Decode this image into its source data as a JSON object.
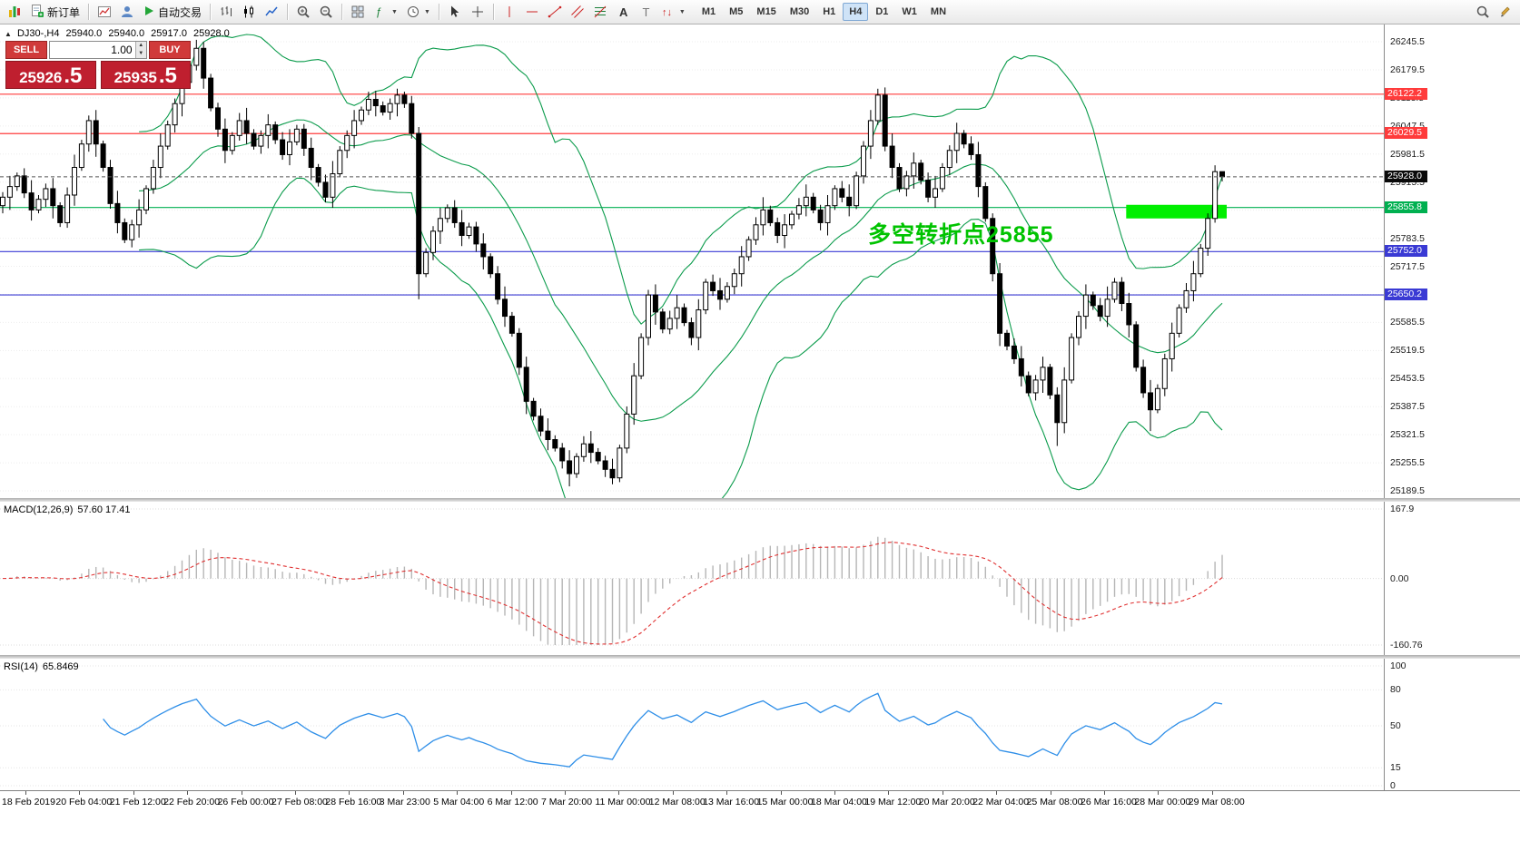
{
  "toolbar": {
    "new_order_label": "新订单",
    "autotrade_label": "自动交易",
    "timeframes": [
      "M1",
      "M5",
      "M15",
      "M30",
      "H1",
      "H4",
      "D1",
      "W1",
      "MN"
    ],
    "active_timeframe": "H4"
  },
  "trade_panel": {
    "sell_label": "SELL",
    "buy_label": "BUY",
    "lot_value": "1.00",
    "sell_price": "25926",
    "sell_price_fraction": ".5",
    "buy_price": "25935",
    "buy_price_fraction": ".5"
  },
  "chart_header": {
    "toggle_glyph": "▲",
    "symbol_period": "DJ30-,H4",
    "open": "25940.0",
    "high": "25940.0",
    "low": "25917.0",
    "close": "25928.0"
  },
  "annotation": {
    "text": "多空转折点25855",
    "color": "#00c300"
  },
  "chart_data": {
    "type": "candlestick",
    "title": "DJ30-,H4",
    "y_ticks": [
      26245.5,
      26179.5,
      26113.5,
      26047.5,
      25981.5,
      25915.5,
      25849.5,
      25783.5,
      25717.5,
      25651.5,
      25585.5,
      25519.5,
      25453.5,
      25387.5,
      25321.5,
      25255.5,
      25189.5
    ],
    "x_labels": [
      "18 Feb 2019",
      "20 Feb 04:00",
      "21 Feb 12:00",
      "22 Feb 20:00",
      "26 Feb 00:00",
      "27 Feb 08:00",
      "28 Feb 16:00",
      "3 Mar 23:00",
      "5 Mar 04:00",
      "6 Mar 12:00",
      "7 Mar 20:00",
      "11 Mar 00:00",
      "12 Mar 08:00",
      "13 Mar 16:00",
      "15 Mar 00:00",
      "18 Mar 04:00",
      "19 Mar 12:00",
      "20 Mar 20:00",
      "22 Mar 04:00",
      "25 Mar 08:00",
      "26 Mar 16:00",
      "28 Mar 00:00",
      "29 Mar 08:00"
    ],
    "levels": [
      {
        "price": 26122.2,
        "label": "26122.2",
        "color": "#ff3b3b"
      },
      {
        "price": 26029.5,
        "label": "26029.5",
        "color": "#ff3b3b"
      },
      {
        "price": 25855.8,
        "label": "25855.8",
        "color": "#00b050"
      },
      {
        "price": 25752.0,
        "label": "25752.0",
        "color": "#3a3ad4"
      },
      {
        "price": 25650.2,
        "label": "25650.2",
        "color": "#3a3ad4"
      }
    ],
    "current_price": {
      "price": 25928.0,
      "label": "25928.0",
      "color": "#0a0a0a"
    },
    "highlight_rect": {
      "from_bar": 157,
      "to_bar": 170,
      "price_top": 25862,
      "price_bottom": 25830,
      "color": "#00ef00"
    },
    "bollinger": {
      "period": 20,
      "deviation": 2,
      "color": "#0a9b4b"
    },
    "macd": {
      "label": "MACD(12,26,9)",
      "values": "57.60 17.41",
      "fast": 12,
      "slow": 26,
      "signal": 9,
      "scale": [
        {
          "label": "167.9",
          "value": 167.9
        },
        {
          "label": "0.00",
          "value": 0
        },
        {
          "label": "-160.76",
          "value": -160.76
        }
      ],
      "histogram_color": "#b6b6b6",
      "signal_color": "#e03131"
    },
    "rsi": {
      "label": "RSI(14)",
      "value": "65.8469",
      "period": 14,
      "scale": [
        {
          "label": "100",
          "value": 100
        },
        {
          "label": "80",
          "value": 80
        },
        {
          "label": "50",
          "value": 50
        },
        {
          "label": "15",
          "value": 15
        },
        {
          "label": "0",
          "value": 0
        }
      ],
      "line_color": "#2f8fe8"
    },
    "ohlc": [
      [
        25860,
        25892,
        25842,
        25880
      ],
      [
        25880,
        25930,
        25850,
        25905
      ],
      [
        25905,
        25938,
        25895,
        25930
      ],
      [
        25930,
        25948,
        25878,
        25890
      ],
      [
        25890,
        25920,
        25825,
        25850
      ],
      [
        25850,
        25885,
        25842,
        25875
      ],
      [
        25875,
        25912,
        25857,
        25900
      ],
      [
        25900,
        25925,
        25830,
        25860
      ],
      [
        25860,
        25868,
        25810,
        25820
      ],
      [
        25820,
        25903,
        25808,
        25885
      ],
      [
        25885,
        25980,
        25860,
        25950
      ],
      [
        25950,
        26015,
        25942,
        26005
      ],
      [
        26005,
        26072,
        25987,
        26060
      ],
      [
        26060,
        26085,
        25975,
        26005
      ],
      [
        26005,
        26013,
        25940,
        25950
      ],
      [
        25950,
        25968,
        25853,
        25865
      ],
      [
        25865,
        25895,
        25795,
        25820
      ],
      [
        25820,
        25830,
        25772,
        25780
      ],
      [
        25780,
        25827,
        25762,
        25815
      ],
      [
        25815,
        25875,
        25785,
        25850
      ],
      [
        25850,
        25908,
        25840,
        25900
      ],
      [
        25900,
        25968,
        25888,
        25950
      ],
      [
        25950,
        26030,
        25925,
        26000
      ],
      [
        26000,
        26060,
        25992,
        26050
      ],
      [
        26050,
        26112,
        26032,
        26100
      ],
      [
        26100,
        26175,
        26070,
        26150
      ],
      [
        26150,
        26198,
        26140,
        26190
      ],
      [
        26190,
        26250,
        26178,
        26230
      ],
      [
        26230,
        26245,
        26135,
        26160
      ],
      [
        26160,
        26170,
        26082,
        26090
      ],
      [
        26090,
        26102,
        26022,
        26040
      ],
      [
        26040,
        26065,
        25960,
        25990
      ],
      [
        25990,
        26033,
        25980,
        26025
      ],
      [
        26025,
        26078,
        26013,
        26060
      ],
      [
        26060,
        26090,
        26005,
        26030
      ],
      [
        26030,
        26040,
        25992,
        26000
      ],
      [
        26000,
        26037,
        25982,
        26025
      ],
      [
        26025,
        26075,
        25995,
        26050
      ],
      [
        26050,
        26058,
        26005,
        26015
      ],
      [
        26015,
        26033,
        25968,
        25980
      ],
      [
        25980,
        26040,
        25955,
        26010
      ],
      [
        26010,
        26050,
        26002,
        26040
      ],
      [
        26040,
        26052,
        25977,
        25995
      ],
      [
        25995,
        26020,
        25920,
        25950
      ],
      [
        25950,
        25958,
        25905,
        25915
      ],
      [
        25915,
        25933,
        25868,
        25880
      ],
      [
        25880,
        25965,
        25855,
        25935
      ],
      [
        25935,
        26000,
        25927,
        25990
      ],
      [
        25990,
        26037,
        25972,
        26025
      ],
      [
        26025,
        26085,
        25995,
        26060
      ],
      [
        26060,
        26093,
        26050,
        26085
      ],
      [
        26085,
        26128,
        26073,
        26110
      ],
      [
        26110,
        26130,
        26070,
        26095
      ],
      [
        26095,
        26105,
        26072,
        26080
      ],
      [
        26080,
        26112,
        26062,
        26100
      ],
      [
        26100,
        26135,
        26070,
        26120
      ],
      [
        26120,
        26128,
        26090,
        26100
      ],
      [
        26100,
        26118,
        26018,
        26030
      ],
      [
        26030,
        26045,
        25640,
        25700
      ],
      [
        25700,
        25760,
        25692,
        25750
      ],
      [
        25750,
        25812,
        25732,
        25800
      ],
      [
        25800,
        25855,
        25770,
        25830
      ],
      [
        25830,
        25863,
        25820,
        25855
      ],
      [
        25855,
        25873,
        25808,
        25820
      ],
      [
        25820,
        25850,
        25765,
        25790
      ],
      [
        25790,
        25820,
        25782,
        25810
      ],
      [
        25810,
        25822,
        25752,
        25770
      ],
      [
        25770,
        25795,
        25710,
        25740
      ],
      [
        25740,
        25748,
        25690,
        25700
      ],
      [
        25700,
        25718,
        25628,
        25640
      ],
      [
        25640,
        25670,
        25575,
        25600
      ],
      [
        25600,
        25610,
        25552,
        25560
      ],
      [
        25560,
        25572,
        25462,
        25480
      ],
      [
        25480,
        25505,
        25370,
        25400
      ],
      [
        25400,
        25408,
        25355,
        25365
      ],
      [
        25365,
        25383,
        25318,
        25330
      ],
      [
        25330,
        25360,
        25285,
        25310
      ],
      [
        25310,
        25320,
        25282,
        25290
      ],
      [
        25290,
        25302,
        25242,
        25260
      ],
      [
        25260,
        25285,
        25200,
        25230
      ],
      [
        25230,
        25278,
        25220,
        25270
      ],
      [
        25270,
        25318,
        25258,
        25300
      ],
      [
        25300,
        25330,
        25255,
        25280
      ],
      [
        25280,
        25290,
        25252,
        25260
      ],
      [
        25260,
        25272,
        25222,
        25240
      ],
      [
        25240,
        25265,
        25205,
        25220
      ],
      [
        25220,
        25298,
        25210,
        25290
      ],
      [
        25290,
        25388,
        25278,
        25370
      ],
      [
        25370,
        25490,
        25345,
        25460
      ],
      [
        25460,
        25560,
        25452,
        25550
      ],
      [
        25550,
        25662,
        25532,
        25650
      ],
      [
        25650,
        25675,
        25580,
        25610
      ],
      [
        25610,
        25618,
        25560,
        25570
      ],
      [
        25570,
        25613,
        25558,
        25595
      ],
      [
        25595,
        25650,
        25570,
        25620
      ],
      [
        25620,
        25630,
        25577,
        25585
      ],
      [
        25585,
        25597,
        25532,
        25550
      ],
      [
        25550,
        25640,
        25520,
        25615
      ],
      [
        25615,
        25688,
        25605,
        25680
      ],
      [
        25680,
        25698,
        25648,
        25660
      ],
      [
        25660,
        25690,
        25615,
        25640
      ],
      [
        25640,
        25680,
        25632,
        25670
      ],
      [
        25670,
        25712,
        25652,
        25700
      ],
      [
        25700,
        25765,
        25670,
        25740
      ],
      [
        25740,
        25788,
        25730,
        25780
      ],
      [
        25780,
        25833,
        25768,
        25815
      ],
      [
        25815,
        25880,
        25790,
        25850
      ],
      [
        25850,
        25860,
        25812,
        25820
      ],
      [
        25820,
        25832,
        25772,
        25790
      ],
      [
        25790,
        25840,
        25760,
        25815
      ],
      [
        25815,
        25848,
        25805,
        25840
      ],
      [
        25840,
        25878,
        25828,
        25860
      ],
      [
        25860,
        25910,
        25835,
        25880
      ],
      [
        25880,
        25890,
        25842,
        25850
      ],
      [
        25850,
        25862,
        25802,
        25820
      ],
      [
        25820,
        25885,
        25790,
        25860
      ],
      [
        25860,
        25908,
        25850,
        25900
      ],
      [
        25900,
        25918,
        25868,
        25880
      ],
      [
        25880,
        25910,
        25835,
        25860
      ],
      [
        25860,
        25940,
        25852,
        25930
      ],
      [
        25930,
        26012,
        25912,
        26000
      ],
      [
        26000,
        26085,
        25970,
        26060
      ],
      [
        26060,
        26135,
        26050,
        26120
      ],
      [
        26120,
        26138,
        25988,
        26000
      ],
      [
        26000,
        26030,
        25925,
        25950
      ],
      [
        25950,
        25960,
        25892,
        25900
      ],
      [
        25900,
        25942,
        25882,
        25930
      ],
      [
        25930,
        25985,
        25900,
        25960
      ],
      [
        25960,
        25968,
        25910,
        25920
      ],
      [
        25920,
        25938,
        25868,
        25880
      ],
      [
        25880,
        25930,
        25855,
        25900
      ],
      [
        25900,
        25960,
        25892,
        25950
      ],
      [
        25950,
        26002,
        25932,
        25990
      ],
      [
        25990,
        26055,
        25960,
        26030
      ],
      [
        26030,
        26038,
        25995,
        26005
      ],
      [
        26005,
        26023,
        25968,
        25980
      ],
      [
        25980,
        26010,
        25880,
        25905
      ],
      [
        25905,
        25915,
        25822,
        25830
      ],
      [
        25830,
        25842,
        25682,
        25700
      ],
      [
        25700,
        25725,
        25530,
        25560
      ],
      [
        25560,
        25568,
        25520,
        25530
      ],
      [
        25530,
        25548,
        25488,
        25500
      ],
      [
        25500,
        25530,
        25435,
        25460
      ],
      [
        25460,
        25470,
        25412,
        25420
      ],
      [
        25420,
        25462,
        25402,
        25450
      ],
      [
        25450,
        25505,
        25420,
        25480
      ],
      [
        25480,
        25488,
        25405,
        25415
      ],
      [
        25415,
        25433,
        25295,
        25350
      ],
      [
        25350,
        25480,
        25325,
        25450
      ],
      [
        25450,
        25560,
        25442,
        25550
      ],
      [
        25550,
        25612,
        25532,
        25600
      ],
      [
        25600,
        25675,
        25570,
        25650
      ],
      [
        25650,
        25658,
        25615,
        25625
      ],
      [
        25625,
        25643,
        25588,
        25600
      ],
      [
        25600,
        25670,
        25575,
        25640
      ],
      [
        25640,
        25690,
        25632,
        25680
      ],
      [
        25680,
        25692,
        25612,
        25630
      ],
      [
        25630,
        25655,
        25550,
        25580
      ],
      [
        25580,
        25588,
        25470,
        25480
      ],
      [
        25480,
        25498,
        25408,
        25420
      ],
      [
        25420,
        25450,
        25330,
        25380
      ],
      [
        25380,
        25440,
        25372,
        25430
      ],
      [
        25430,
        25512,
        25412,
        25500
      ],
      [
        25500,
        25585,
        25470,
        25560
      ],
      [
        25560,
        25628,
        25550,
        25620
      ],
      [
        25620,
        25678,
        25608,
        25660
      ],
      [
        25660,
        25730,
        25635,
        25700
      ],
      [
        25700,
        25770,
        25692,
        25760
      ],
      [
        25760,
        25842,
        25742,
        25830
      ],
      [
        25830,
        25955,
        25820,
        25940
      ],
      [
        25940,
        25940,
        25917,
        25928
      ]
    ]
  }
}
